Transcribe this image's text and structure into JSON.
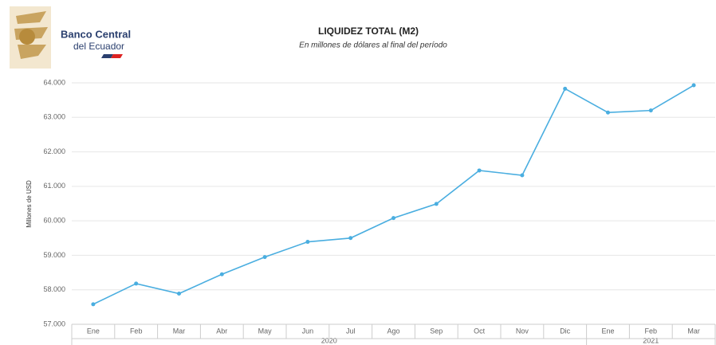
{
  "logo": {
    "line1": "Banco Central",
    "line2": "del Ecuador"
  },
  "chart_data": {
    "type": "line",
    "title": "LIQUIDEZ TOTAL (M2)",
    "subtitle": "En millones de dólares al final del período",
    "y_label": "Millones de USD",
    "categories": [
      "Ene",
      "Feb",
      "Mar",
      "Abr",
      "May",
      "Jun",
      "Jul",
      "Ago",
      "Sep",
      "Oct",
      "Nov",
      "Dic",
      "Ene",
      "Feb",
      "Mar"
    ],
    "year_groups": [
      {
        "label": "2020",
        "count": 12
      },
      {
        "label": "2021",
        "count": 3
      }
    ],
    "series": [
      {
        "name": "M2",
        "color": "#4aaee0",
        "values": [
          57580,
          58180,
          57890,
          58450,
          58950,
          59390,
          59500,
          60080,
          60490,
          61460,
          61320,
          63830,
          63140,
          63200,
          63930
        ]
      }
    ],
    "ylim": [
      57000,
      64000
    ],
    "yticks": [
      {
        "value": 57000,
        "label": "57.000"
      },
      {
        "value": 58000,
        "label": "58.000"
      },
      {
        "value": 59000,
        "label": "59.000"
      },
      {
        "value": 60000,
        "label": "60.000"
      },
      {
        "value": 61000,
        "label": "61.000"
      },
      {
        "value": 62000,
        "label": "62.000"
      },
      {
        "value": 63000,
        "label": "63.000"
      },
      {
        "value": 64000,
        "label": "64.000"
      }
    ],
    "grid": true
  }
}
